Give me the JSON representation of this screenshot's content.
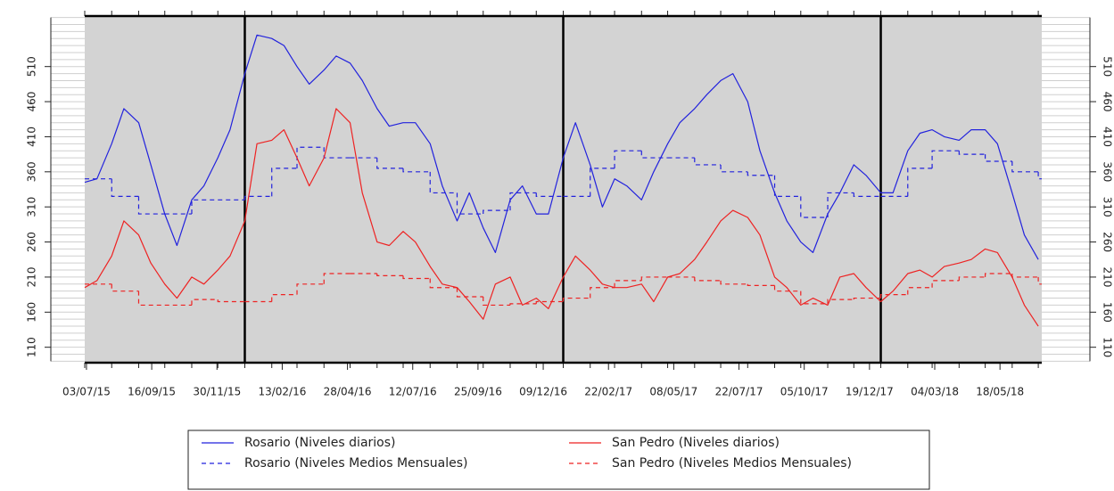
{
  "chart_data": {
    "type": "line",
    "xlim": [
      "01/07/15",
      "05/07/18"
    ],
    "xticks": [
      "03/07/15",
      "16/09/15",
      "30/11/15",
      "13/02/16",
      "28/04/16",
      "12/07/16",
      "25/09/16",
      "09/12/16",
      "22/02/17",
      "08/05/17",
      "22/07/17",
      "05/10/17",
      "19/12/17",
      "04/03/18",
      "18/05/18"
    ],
    "ylim": [
      88,
      582
    ],
    "yticks": [
      110,
      160,
      210,
      260,
      310,
      360,
      410,
      460,
      510
    ],
    "yminor": [
      90,
      100,
      110,
      120,
      130,
      140,
      150,
      160,
      170,
      180,
      190,
      200,
      210,
      220,
      230,
      240,
      250,
      260,
      270,
      280,
      290,
      300,
      310,
      320,
      330,
      340,
      350,
      360,
      370,
      380,
      390,
      400,
      410,
      420,
      430,
      440,
      450,
      460,
      470,
      480,
      490,
      500,
      510,
      520,
      530,
      540,
      550,
      560,
      570,
      580
    ],
    "year_lines": true,
    "background": "#d3d3d3",
    "series": [
      {
        "name": "Rosario (Niveles diarios)",
        "color": "#2222dd",
        "dashed": false,
        "x": [
          "01/07/15",
          "15/07/15",
          "01/08/15",
          "15/08/15",
          "01/09/15",
          "15/09/15",
          "01/10/15",
          "15/10/15",
          "01/11/15",
          "15/11/15",
          "01/12/15",
          "15/12/15",
          "01/01/16",
          "15/01/16",
          "01/02/16",
          "15/02/16",
          "01/03/16",
          "15/03/16",
          "01/04/16",
          "15/04/16",
          "01/05/16",
          "15/05/16",
          "01/06/16",
          "15/06/16",
          "01/07/16",
          "15/07/16",
          "01/08/16",
          "15/08/16",
          "01/09/16",
          "15/09/16",
          "01/10/16",
          "15/10/16",
          "01/11/16",
          "15/11/16",
          "01/12/16",
          "15/12/16",
          "01/01/17",
          "15/01/17",
          "01/02/17",
          "15/02/17",
          "01/03/17",
          "15/03/17",
          "01/04/17",
          "15/04/17",
          "01/05/17",
          "15/05/17",
          "01/06/17",
          "15/06/17",
          "01/07/17",
          "15/07/17",
          "01/08/17",
          "15/08/17",
          "01/09/17",
          "15/09/17",
          "01/10/17",
          "15/10/17",
          "01/11/17",
          "15/11/17",
          "01/12/17",
          "15/12/17",
          "01/01/18",
          "15/01/18",
          "01/02/18",
          "15/02/18",
          "01/03/18",
          "15/03/18",
          "01/04/18",
          "15/04/18",
          "01/05/18",
          "15/05/18",
          "01/06/18",
          "15/06/18",
          "01/07/18"
        ],
        "values": [
          345,
          350,
          400,
          450,
          430,
          370,
          300,
          255,
          320,
          340,
          380,
          420,
          500,
          555,
          550,
          540,
          510,
          485,
          505,
          525,
          515,
          490,
          450,
          425,
          430,
          430,
          400,
          340,
          290,
          330,
          280,
          245,
          320,
          340,
          300,
          300,
          380,
          430,
          370,
          310,
          350,
          340,
          320,
          360,
          400,
          430,
          450,
          470,
          490,
          500,
          460,
          390,
          330,
          290,
          260,
          245,
          300,
          330,
          370,
          355,
          330,
          330,
          390,
          415,
          420,
          410,
          405,
          420,
          420,
          400,
          330,
          270,
          235
        ]
      },
      {
        "name": "Rosario (Niveles Medios Mensuales)",
        "color": "#2222dd",
        "dashed": true,
        "x": [
          "01/07/15",
          "01/08/15",
          "01/09/15",
          "01/10/15",
          "01/11/15",
          "01/12/15",
          "01/01/16",
          "01/02/16",
          "01/03/16",
          "01/04/16",
          "01/05/16",
          "01/06/16",
          "01/07/16",
          "01/08/16",
          "01/09/16",
          "01/10/16",
          "01/11/16",
          "01/12/16",
          "01/01/17",
          "01/02/17",
          "01/03/17",
          "01/04/17",
          "01/05/17",
          "01/06/17",
          "01/07/17",
          "01/08/17",
          "01/09/17",
          "01/10/17",
          "01/11/17",
          "01/12/17",
          "01/01/18",
          "01/02/18",
          "01/03/18",
          "01/04/18",
          "01/05/18",
          "01/06/18",
          "01/07/18"
        ],
        "values": [
          350,
          325,
          300,
          300,
          320,
          320,
          325,
          365,
          395,
          380,
          380,
          365,
          360,
          330,
          300,
          305,
          330,
          325,
          325,
          365,
          390,
          380,
          380,
          370,
          360,
          355,
          325,
          295,
          330,
          325,
          325,
          365,
          390,
          385,
          375,
          360,
          350
        ]
      },
      {
        "name": "San Pedro (Niveles diarios)",
        "color": "#ee2222",
        "dashed": false,
        "x": [
          "01/07/15",
          "15/07/15",
          "01/08/15",
          "15/08/15",
          "01/09/15",
          "15/09/15",
          "01/10/15",
          "15/10/15",
          "01/11/15",
          "15/11/15",
          "01/12/15",
          "15/12/15",
          "01/01/16",
          "15/01/16",
          "01/02/16",
          "15/02/16",
          "01/03/16",
          "15/03/16",
          "01/04/16",
          "15/04/16",
          "01/05/16",
          "15/05/16",
          "01/06/16",
          "15/06/16",
          "01/07/16",
          "15/07/16",
          "01/08/16",
          "15/08/16",
          "01/09/16",
          "15/09/16",
          "01/10/16",
          "15/10/16",
          "01/11/16",
          "15/11/16",
          "01/12/16",
          "15/12/16",
          "01/01/17",
          "15/01/17",
          "01/02/17",
          "15/02/17",
          "01/03/17",
          "15/03/17",
          "01/04/17",
          "15/04/17",
          "01/05/17",
          "15/05/17",
          "01/06/17",
          "15/06/17",
          "01/07/17",
          "15/07/17",
          "01/08/17",
          "15/08/17",
          "01/09/17",
          "15/09/17",
          "01/10/17",
          "15/10/17",
          "01/11/17",
          "15/11/17",
          "01/12/17",
          "15/12/17",
          "01/01/18",
          "15/01/18",
          "01/02/18",
          "15/02/18",
          "01/03/18",
          "15/03/18",
          "01/04/18",
          "15/04/18",
          "01/05/18",
          "15/05/18",
          "01/06/18",
          "15/06/18",
          "01/07/18"
        ],
        "values": [
          195,
          205,
          240,
          290,
          270,
          230,
          200,
          180,
          210,
          200,
          220,
          240,
          290,
          400,
          405,
          420,
          380,
          340,
          380,
          450,
          430,
          330,
          260,
          255,
          275,
          260,
          225,
          200,
          195,
          175,
          150,
          200,
          210,
          170,
          180,
          165,
          210,
          240,
          220,
          200,
          195,
          195,
          200,
          175,
          210,
          215,
          235,
          260,
          290,
          305,
          295,
          270,
          210,
          195,
          170,
          180,
          170,
          210,
          215,
          195,
          175,
          190,
          215,
          220,
          210,
          225,
          230,
          235,
          250,
          245,
          210,
          170,
          140
        ]
      },
      {
        "name": "San Pedro (Niveles Medios Mensuales)",
        "color": "#ee2222",
        "dashed": true,
        "x": [
          "01/07/15",
          "01/08/15",
          "01/09/15",
          "01/10/15",
          "01/11/15",
          "01/12/15",
          "01/01/16",
          "01/02/16",
          "01/03/16",
          "01/04/16",
          "01/05/16",
          "01/06/16",
          "01/07/16",
          "01/08/16",
          "01/09/16",
          "01/10/16",
          "01/11/16",
          "01/12/16",
          "01/01/17",
          "01/02/17",
          "01/03/17",
          "01/04/17",
          "01/05/17",
          "01/06/17",
          "01/07/17",
          "01/08/17",
          "01/09/17",
          "01/10/17",
          "01/11/17",
          "01/12/17",
          "01/01/18",
          "01/02/18",
          "01/03/18",
          "01/04/18",
          "01/05/18",
          "01/06/18",
          "01/07/18"
        ],
        "values": [
          200,
          190,
          170,
          170,
          178,
          175,
          175,
          185,
          200,
          215,
          215,
          212,
          208,
          195,
          182,
          170,
          172,
          175,
          180,
          195,
          205,
          210,
          210,
          205,
          200,
          198,
          190,
          172,
          178,
          180,
          185,
          195,
          205,
          210,
          215,
          210,
          200
        ]
      }
    ]
  }
}
